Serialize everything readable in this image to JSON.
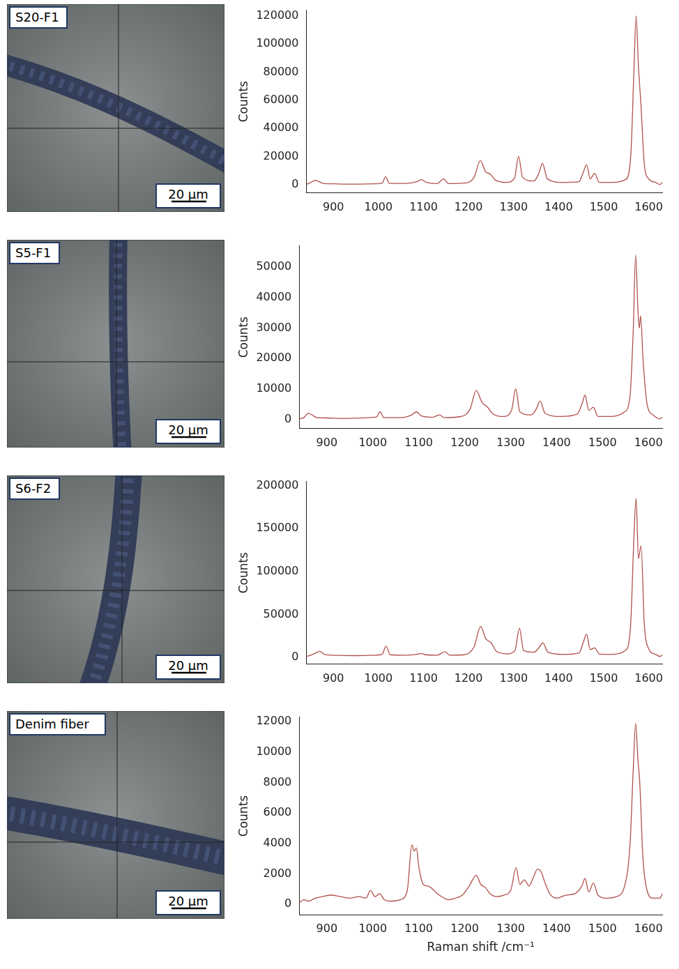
{
  "images": [
    {
      "label": "S20-F1",
      "scale_bar": "20 µm"
    },
    {
      "label": "S5-F1",
      "scale_bar": "20 µm"
    },
    {
      "label": "S6-F2",
      "scale_bar": "20 µm"
    },
    {
      "label": "Denim fiber",
      "scale_bar": "20 µm"
    }
  ],
  "chart_data": [
    {
      "type": "line",
      "y_label": "Counts",
      "color": "#b0504a",
      "grid": false,
      "xlim": [
        840,
        1630
      ],
      "xticks": [
        900,
        1000,
        1100,
        1200,
        1300,
        1400,
        1500,
        1600
      ],
      "ylim": [
        -6000,
        124000
      ],
      "yticks": [
        0,
        20000,
        40000,
        60000,
        80000,
        100000,
        120000
      ],
      "x": [
        840,
        850,
        860,
        868,
        878,
        900,
        950,
        990,
        1008,
        1016,
        1024,
        1060,
        1085,
        1095,
        1105,
        1130,
        1145,
        1155,
        1190,
        1212,
        1226,
        1238,
        1248,
        1260,
        1285,
        1302,
        1311,
        1320,
        1345,
        1356,
        1364,
        1375,
        1410,
        1445,
        1455,
        1462,
        1470,
        1480,
        1490,
        1520,
        1548,
        1560,
        1567,
        1572,
        1577,
        1583,
        1590,
        1600,
        1615,
        1625,
        1630
      ],
      "values": [
        0,
        1500,
        3000,
        2000,
        800,
        500,
        300,
        500,
        1000,
        5500,
        800,
        800,
        2000,
        3500,
        1800,
        700,
        4000,
        700,
        1000,
        5000,
        17000,
        9000,
        7500,
        3000,
        1500,
        4500,
        20000,
        5000,
        2500,
        8000,
        15000,
        4000,
        1500,
        2000,
        9000,
        14000,
        4000,
        8000,
        1500,
        1500,
        3500,
        20000,
        80000,
        120000,
        85000,
        55000,
        15000,
        4000,
        1500,
        0,
        1500
      ]
    },
    {
      "type": "line",
      "y_label": "Counts",
      "color": "#b0504a",
      "grid": false,
      "xlim": [
        840,
        1630
      ],
      "xticks": [
        900,
        1000,
        1100,
        1200,
        1300,
        1400,
        1500,
        1600
      ],
      "ylim": [
        -3000,
        57000
      ],
      "yticks": [
        0,
        10000,
        20000,
        30000,
        40000,
        50000
      ],
      "x": [
        840,
        850,
        860,
        868,
        878,
        900,
        930,
        960,
        990,
        1008,
        1016,
        1024,
        1060,
        1085,
        1095,
        1105,
        1130,
        1145,
        1155,
        1190,
        1212,
        1225,
        1238,
        1250,
        1260,
        1285,
        1302,
        1311,
        1320,
        1345,
        1356,
        1364,
        1375,
        1410,
        1445,
        1455,
        1462,
        1470,
        1480,
        1490,
        1520,
        1548,
        1560,
        1567,
        1572,
        1577,
        1580,
        1583,
        1588,
        1597,
        1610,
        1625,
        1630
      ],
      "values": [
        200,
        600,
        2000,
        1500,
        600,
        500,
        300,
        400,
        600,
        800,
        2500,
        600,
        600,
        1500,
        2500,
        1200,
        700,
        1500,
        600,
        900,
        3500,
        9500,
        5500,
        4000,
        2000,
        1000,
        3000,
        10000,
        2500,
        1500,
        3500,
        6000,
        2000,
        1000,
        1800,
        5000,
        8000,
        3000,
        4000,
        1000,
        1000,
        2500,
        8000,
        30000,
        54000,
        36000,
        30000,
        34000,
        20000,
        5000,
        1500,
        200,
        800
      ]
    },
    {
      "type": "line",
      "y_label": "Counts",
      "color": "#b0504a",
      "grid": false,
      "xlim": [
        840,
        1630
      ],
      "xticks": [
        900,
        1000,
        1100,
        1200,
        1300,
        1400,
        1500,
        1600
      ],
      "ylim": [
        -8000,
        205000
      ],
      "yticks": [
        0,
        50000,
        100000,
        150000,
        200000
      ],
      "x": [
        840,
        850,
        860,
        870,
        880,
        900,
        950,
        990,
        1008,
        1017,
        1026,
        1060,
        1085,
        1095,
        1105,
        1130,
        1148,
        1158,
        1190,
        1212,
        1227,
        1238,
        1250,
        1262,
        1285,
        1303,
        1313,
        1322,
        1345,
        1356,
        1365,
        1376,
        1410,
        1445,
        1455,
        1462,
        1470,
        1480,
        1490,
        1520,
        1548,
        1560,
        1567,
        1572,
        1577,
        1583,
        1590,
        1600,
        1615,
        1625,
        1630
      ],
      "values": [
        1000,
        2500,
        5000,
        7000,
        3500,
        2500,
        2000,
        2500,
        3500,
        13000,
        3000,
        2500,
        3500,
        4500,
        3000,
        2500,
        6500,
        2500,
        3000,
        12000,
        36000,
        22000,
        17000,
        7000,
        4000,
        8000,
        34000,
        8000,
        6000,
        11000,
        17000,
        6000,
        3500,
        5000,
        18000,
        27000,
        9000,
        11000,
        4000,
        3500,
        8000,
        40000,
        140000,
        185000,
        115000,
        130000,
        40000,
        10000,
        3500,
        1000,
        3000
      ]
    },
    {
      "type": "line",
      "y_label": "Counts",
      "x_label": "Raman shift /cm⁻¹",
      "color": "#b0504a",
      "grid": false,
      "xlim": [
        840,
        1630
      ],
      "xticks": [
        900,
        1000,
        1100,
        1200,
        1300,
        1400,
        1500,
        1600
      ],
      "ylim": [
        -700,
        12300
      ],
      "yticks": [
        0,
        2000,
        4000,
        6000,
        8000,
        10000,
        12000
      ],
      "x": [
        840,
        850,
        860,
        875,
        890,
        910,
        930,
        950,
        970,
        985,
        995,
        1005,
        1015,
        1025,
        1040,
        1060,
        1075,
        1085,
        1090,
        1095,
        1100,
        1110,
        1120,
        1130,
        1140,
        1150,
        1165,
        1180,
        1195,
        1210,
        1225,
        1235,
        1245,
        1255,
        1270,
        1285,
        1300,
        1312,
        1320,
        1330,
        1340,
        1350,
        1358,
        1365,
        1375,
        1385,
        1400,
        1420,
        1440,
        1455,
        1462,
        1470,
        1480,
        1490,
        1510,
        1530,
        1548,
        1560,
        1567,
        1572,
        1577,
        1581,
        1588,
        1597,
        1610,
        1625,
        1630
      ],
      "values": [
        100,
        300,
        200,
        400,
        500,
        600,
        500,
        400,
        500,
        400,
        900,
        500,
        700,
        300,
        200,
        300,
        900,
        3900,
        3500,
        3700,
        2500,
        1300,
        1200,
        1000,
        700,
        500,
        300,
        400,
        600,
        1200,
        1900,
        1300,
        1100,
        700,
        500,
        600,
        900,
        2400,
        1300,
        1600,
        1200,
        1800,
        2300,
        2200,
        1400,
        700,
        400,
        600,
        700,
        1200,
        1700,
        800,
        1400,
        600,
        400,
        500,
        1200,
        4000,
        9000,
        11900,
        9500,
        8000,
        3000,
        900,
        400,
        400,
        700
      ]
    }
  ]
}
